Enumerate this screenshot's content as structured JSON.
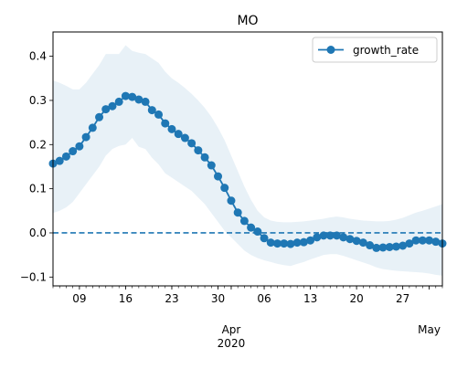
{
  "chart_data": {
    "type": "line",
    "title": "MO",
    "xlabel": "",
    "ylabel": "",
    "x_start": "2020-03-05",
    "x": [
      "2020-03-05",
      "2020-03-06",
      "2020-03-07",
      "2020-03-08",
      "2020-03-09",
      "2020-03-10",
      "2020-03-11",
      "2020-03-12",
      "2020-03-13",
      "2020-03-14",
      "2020-03-15",
      "2020-03-16",
      "2020-03-17",
      "2020-03-18",
      "2020-03-19",
      "2020-03-20",
      "2020-03-21",
      "2020-03-22",
      "2020-03-23",
      "2020-03-24",
      "2020-03-25",
      "2020-03-26",
      "2020-03-27",
      "2020-03-28",
      "2020-03-29",
      "2020-03-30",
      "2020-03-31",
      "2020-04-01",
      "2020-04-02",
      "2020-04-03",
      "2020-04-04",
      "2020-04-05",
      "2020-04-06",
      "2020-04-07",
      "2020-04-08",
      "2020-04-09",
      "2020-04-10",
      "2020-04-11",
      "2020-04-12",
      "2020-04-13",
      "2020-04-14",
      "2020-04-15",
      "2020-04-16",
      "2020-04-17",
      "2020-04-18",
      "2020-04-19",
      "2020-04-20",
      "2020-04-21",
      "2020-04-22",
      "2020-04-23",
      "2020-04-24",
      "2020-04-25",
      "2020-04-26",
      "2020-04-27",
      "2020-04-28",
      "2020-04-29",
      "2020-04-30",
      "2020-05-01",
      "2020-05-02",
      "2020-05-03"
    ],
    "series": [
      {
        "name": "growth_rate",
        "color": "#1f77b4",
        "values": [
          0.157,
          0.163,
          0.173,
          0.185,
          0.196,
          0.217,
          0.238,
          0.262,
          0.28,
          0.287,
          0.297,
          0.31,
          0.308,
          0.302,
          0.297,
          0.278,
          0.268,
          0.248,
          0.235,
          0.224,
          0.215,
          0.203,
          0.187,
          0.171,
          0.153,
          0.128,
          0.102,
          0.073,
          0.046,
          0.027,
          0.012,
          0.003,
          -0.012,
          -0.022,
          -0.024,
          -0.024,
          -0.025,
          -0.022,
          -0.021,
          -0.017,
          -0.01,
          -0.006,
          -0.006,
          -0.006,
          -0.01,
          -0.014,
          -0.018,
          -0.022,
          -0.028,
          -0.034,
          -0.033,
          -0.032,
          -0.031,
          -0.029,
          -0.024,
          -0.017,
          -0.017,
          -0.017,
          -0.02,
          -0.024
        ]
      }
    ],
    "band": {
      "color": "#1f77b4",
      "opacity": 0.1,
      "upper": [
        0.345,
        0.34,
        0.333,
        0.325,
        0.325,
        0.34,
        0.36,
        0.38,
        0.405,
        0.405,
        0.405,
        0.425,
        0.412,
        0.408,
        0.405,
        0.395,
        0.385,
        0.365,
        0.35,
        0.34,
        0.328,
        0.315,
        0.3,
        0.283,
        0.263,
        0.238,
        0.21,
        0.175,
        0.14,
        0.105,
        0.075,
        0.05,
        0.035,
        0.028,
        0.025,
        0.024,
        0.024,
        0.025,
        0.026,
        0.028,
        0.03,
        0.032,
        0.035,
        0.037,
        0.035,
        0.032,
        0.03,
        0.028,
        0.027,
        0.026,
        0.026,
        0.027,
        0.03,
        0.034,
        0.04,
        0.046,
        0.05,
        0.055,
        0.06,
        0.065
      ],
      "lower": [
        0.045,
        0.05,
        0.058,
        0.07,
        0.09,
        0.11,
        0.13,
        0.15,
        0.175,
        0.19,
        0.197,
        0.2,
        0.215,
        0.195,
        0.19,
        0.17,
        0.155,
        0.135,
        0.125,
        0.115,
        0.105,
        0.095,
        0.08,
        0.065,
        0.045,
        0.025,
        0.005,
        -0.01,
        -0.025,
        -0.04,
        -0.05,
        -0.057,
        -0.062,
        -0.066,
        -0.07,
        -0.073,
        -0.075,
        -0.07,
        -0.066,
        -0.06,
        -0.055,
        -0.05,
        -0.048,
        -0.048,
        -0.052,
        -0.057,
        -0.062,
        -0.067,
        -0.072,
        -0.078,
        -0.082,
        -0.084,
        -0.086,
        -0.087,
        -0.088,
        -0.089,
        -0.09,
        -0.092,
        -0.095,
        -0.097
      ]
    },
    "hline": {
      "y": 0.0,
      "style": "dashed",
      "color": "#1f77b4"
    },
    "ylim": [
      -0.12,
      0.455
    ],
    "xlim": [
      "2020-03-05",
      "2020-05-03"
    ],
    "yticks": [
      -0.1,
      0.0,
      0.1,
      0.2,
      0.3,
      0.4
    ],
    "ytick_labels": [
      "−0.1",
      "0.0",
      "0.1",
      "0.2",
      "0.3",
      "0.4"
    ],
    "xticks_major": [
      {
        "date": "2020-04-01",
        "label": "Apr\n2020"
      },
      {
        "date": "2020-05-01",
        "label": "May"
      }
    ],
    "xticks_minor": [
      {
        "date": "2020-03-09",
        "label": "09"
      },
      {
        "date": "2020-03-16",
        "label": "16"
      },
      {
        "date": "2020-03-23",
        "label": "23"
      },
      {
        "date": "2020-03-30",
        "label": "30"
      },
      {
        "date": "2020-04-06",
        "label": "06"
      },
      {
        "date": "2020-04-13",
        "label": "13"
      },
      {
        "date": "2020-04-20",
        "label": "20"
      },
      {
        "date": "2020-04-27",
        "label": "27"
      }
    ],
    "legend": {
      "position": "top-right",
      "entries": [
        "growth_rate"
      ]
    },
    "grid": false
  }
}
